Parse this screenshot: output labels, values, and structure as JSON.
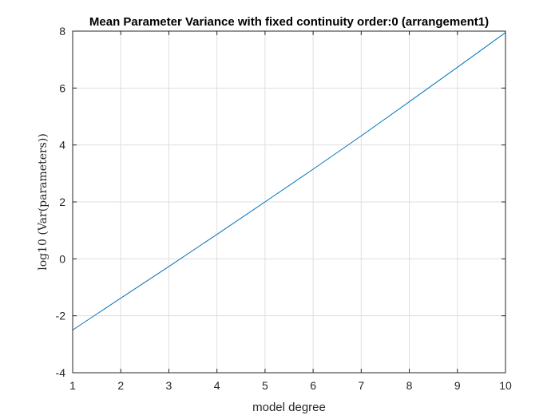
{
  "chart_data": {
    "type": "line",
    "title": "Mean Parameter Variance with fixed continuity order:0 (arrangement1)",
    "xlabel": "model degree",
    "ylabel": "log10 (Var(parameters))",
    "xlim": [
      1,
      10
    ],
    "ylim": [
      -4,
      8
    ],
    "xticks": [
      "1",
      "2",
      "3",
      "4",
      "5",
      "6",
      "7",
      "8",
      "9",
      "10"
    ],
    "yticks": [
      "-4",
      "-2",
      "0",
      "2",
      "4",
      "6",
      "8"
    ],
    "grid": true,
    "series": [
      {
        "color": "#0072bd",
        "x": [
          1,
          2,
          3,
          4,
          5,
          6,
          7,
          8,
          9,
          10
        ],
        "y": [
          -2.5,
          -1.38,
          -0.27,
          0.86,
          2.0,
          3.15,
          4.32,
          5.52,
          6.73,
          7.95
        ]
      }
    ]
  }
}
